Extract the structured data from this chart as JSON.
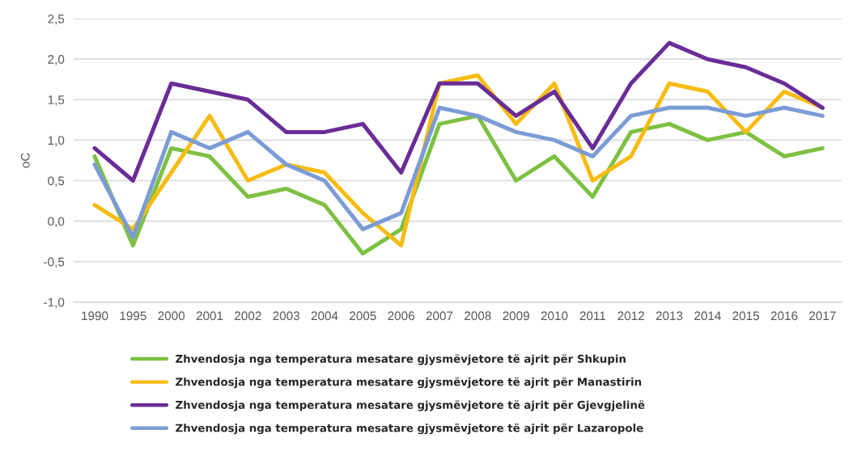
{
  "chart_data": {
    "type": "line",
    "ylabel": "oC",
    "categories": [
      "1990",
      "1995",
      "2000",
      "2001",
      "2002",
      "2003",
      "2004",
      "2005",
      "2006",
      "2007",
      "2008",
      "2009",
      "2010",
      "2011",
      "2012",
      "2013",
      "2014",
      "2015",
      "2016",
      "2017"
    ],
    "series": [
      {
        "name": "Zhvendosja nga temperatura mesatare gjysmëvjetore të ajrit për Shkupin",
        "color": "#7dc142",
        "values": [
          0.8,
          -0.3,
          0.9,
          0.8,
          0.3,
          0.4,
          0.2,
          -0.4,
          -0.1,
          1.2,
          1.3,
          0.5,
          0.8,
          0.3,
          1.1,
          1.2,
          1.0,
          1.1,
          0.8,
          0.9
        ]
      },
      {
        "name": "Zhvendosja nga temperatura mesatare gjysmëvjetore të ajrit për Manastirin",
        "color": "#f7bc12",
        "values": [
          0.2,
          -0.1,
          0.6,
          1.3,
          0.5,
          0.7,
          0.6,
          0.1,
          -0.3,
          1.7,
          1.8,
          1.2,
          1.7,
          0.5,
          0.8,
          1.7,
          1.6,
          1.1,
          1.6,
          1.4
        ]
      },
      {
        "name": "Zhvendosja nga temperatura mesatare gjysmëvjetore të ajrit për Gjevgjelinë",
        "color": "#6a2c96",
        "values": [
          0.9,
          0.5,
          1.7,
          1.6,
          1.5,
          1.1,
          1.1,
          1.2,
          0.6,
          1.7,
          1.7,
          1.3,
          1.6,
          0.9,
          1.7,
          2.2,
          2.0,
          1.9,
          1.7,
          1.4
        ]
      },
      {
        "name": "Zhvendosja nga temperatura mesatare gjysmëvjetore të ajrit për Lazaropole",
        "color": "#7b9cd6",
        "values": [
          0.7,
          -0.2,
          1.1,
          0.9,
          1.1,
          0.7,
          0.5,
          -0.1,
          0.1,
          1.4,
          1.3,
          1.1,
          1.0,
          0.8,
          1.3,
          1.4,
          1.4,
          1.3,
          1.4,
          1.3
        ]
      }
    ],
    "ylim": [
      -1.0,
      2.5
    ],
    "yticks": [
      {
        "value": -1.0,
        "label": "-1,0"
      },
      {
        "value": -0.5,
        "label": "-0,5"
      },
      {
        "value": 0.0,
        "label": "0,0"
      },
      {
        "value": 0.5,
        "label": "0,5"
      },
      {
        "value": 1.0,
        "label": "1,0"
      },
      {
        "value": 1.5,
        "label": "1,5"
      },
      {
        "value": 2.0,
        "label": "2,0"
      },
      {
        "value": 2.5,
        "label": "2,5"
      }
    ],
    "grid": "y",
    "legend": "bottom",
    "line_style": "solid"
  }
}
